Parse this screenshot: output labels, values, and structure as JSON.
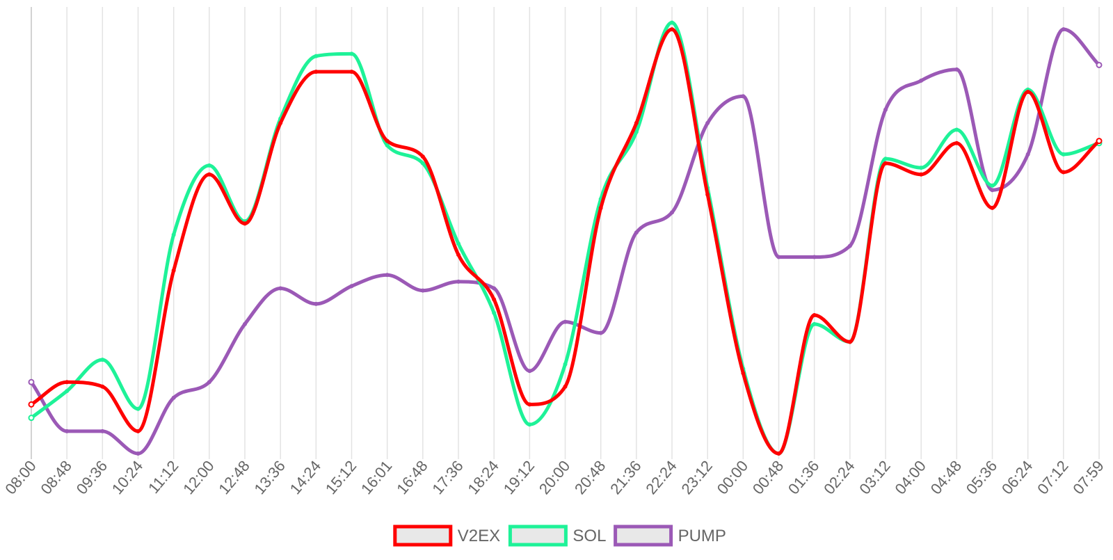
{
  "chart_data": {
    "type": "line",
    "title": "",
    "xlabel": "",
    "ylabel": "",
    "ylim": [
      0,
      100
    ],
    "grid": "vertical",
    "legend_position": "bottom-center",
    "x": [
      "08:00",
      "08:48",
      "09:36",
      "10:24",
      "11:12",
      "12:00",
      "12:48",
      "13:36",
      "14:24",
      "15:12",
      "16:01",
      "16:48",
      "17:36",
      "18:24",
      "19:12",
      "20:00",
      "20:48",
      "21:36",
      "22:24",
      "23:12",
      "00:00",
      "00:48",
      "01:36",
      "02:24",
      "03:12",
      "04:00",
      "04:48",
      "05:36",
      "06:24",
      "07:12",
      "07:59"
    ],
    "series": [
      {
        "name": "V2EX",
        "color": "#ff0000",
        "values": [
          11.0,
          16.0,
          15.0,
          5.0,
          41.0,
          62.5,
          51.5,
          74.0,
          85.5,
          85.5,
          70.0,
          66.5,
          44.5,
          34.5,
          11.0,
          15.0,
          55.0,
          74.0,
          95.0,
          58.0,
          18.0,
          0.0,
          31.0,
          25.0,
          65.0,
          62.5,
          69.5,
          55.0,
          81.0,
          63.0,
          70.0
        ]
      },
      {
        "name": "SOL",
        "color": "#1ef298",
        "values": [
          8.0,
          14.0,
          21.0,
          10.0,
          49.0,
          64.5,
          52.0,
          75.0,
          89.0,
          89.5,
          69.0,
          65.0,
          47.0,
          31.5,
          6.5,
          20.0,
          57.0,
          72.0,
          96.5,
          59.5,
          19.0,
          0.0,
          29.0,
          25.0,
          66.0,
          64.0,
          72.5,
          60.0,
          81.5,
          67.0,
          69.5
        ]
      },
      {
        "name": "PUMP",
        "color": "#9b59b6",
        "values": [
          16.0,
          5.0,
          5.0,
          0.0,
          12.5,
          16.0,
          29.0,
          37.0,
          33.5,
          37.5,
          40.0,
          36.5,
          38.5,
          37.0,
          18.5,
          29.5,
          27.0,
          49.5,
          54.0,
          74.0,
          80.0,
          44.0,
          44.0,
          46.5,
          77.0,
          83.5,
          86.0,
          59.0,
          67.0,
          95.0,
          87.0
        ]
      }
    ]
  }
}
